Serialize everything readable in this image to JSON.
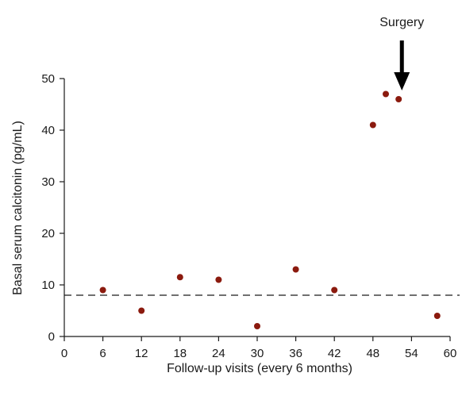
{
  "chart_data": {
    "type": "scatter",
    "xlabel": "Follow-up visits (every 6 months)",
    "ylabel": "Basal serum calcitonin (pg/mL)",
    "xlim": [
      0,
      60
    ],
    "ylim": [
      0,
      50
    ],
    "xticks": [
      0,
      6,
      12,
      18,
      24,
      30,
      36,
      42,
      48,
      54,
      60
    ],
    "yticks": [
      0,
      10,
      20,
      30,
      40,
      50
    ],
    "grid": false,
    "points": [
      {
        "x": 6,
        "y": 9
      },
      {
        "x": 12,
        "y": 5
      },
      {
        "x": 18,
        "y": 11.5
      },
      {
        "x": 24,
        "y": 11
      },
      {
        "x": 30,
        "y": 2
      },
      {
        "x": 36,
        "y": 13
      },
      {
        "x": 42,
        "y": 9
      },
      {
        "x": 48,
        "y": 41
      },
      {
        "x": 50,
        "y": 47
      },
      {
        "x": 52,
        "y": 46
      },
      {
        "x": 58,
        "y": 4
      }
    ],
    "reference_line": {
      "y": 8,
      "style": "dashed"
    },
    "annotation": {
      "text": "Surgery",
      "x": 52.5,
      "marker": "down-arrow"
    },
    "marker_color": "#8b1a0e"
  }
}
